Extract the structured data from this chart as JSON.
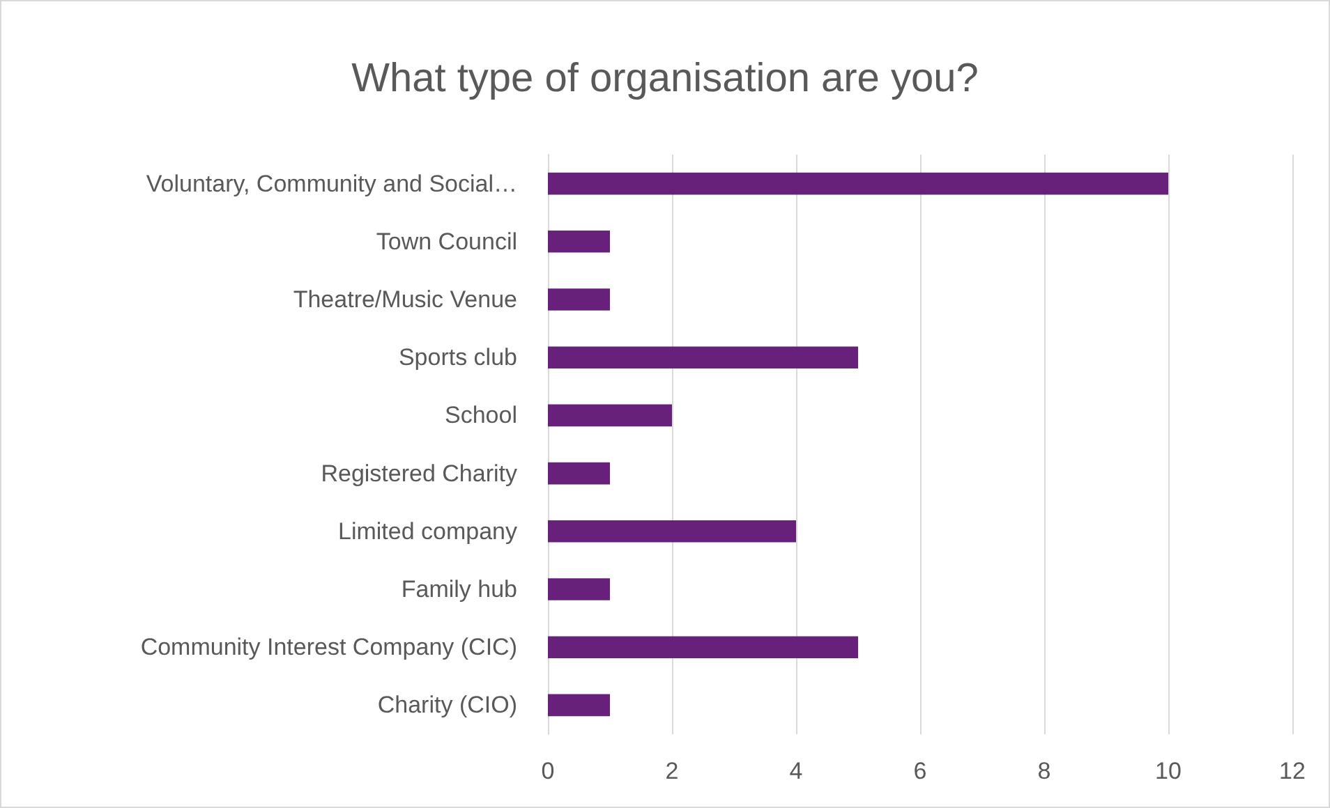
{
  "chart_data": {
    "type": "bar",
    "orientation": "horizontal",
    "title": "What type of organisation are you?",
    "categories": [
      "Voluntary, Community and Social…",
      "Town Council",
      "Theatre/Music Venue",
      "Sports club",
      "School",
      "Registered Charity",
      "Limited company",
      "Family hub",
      "Community Interest Company (CIC)",
      "Charity (CIO)"
    ],
    "values": [
      10,
      1,
      1,
      5,
      2,
      1,
      4,
      1,
      5,
      1
    ],
    "color": "#68217a",
    "xlim": [
      0,
      12
    ],
    "xticks": [
      0,
      2,
      4,
      6,
      8,
      10,
      12
    ],
    "grid": "x"
  }
}
